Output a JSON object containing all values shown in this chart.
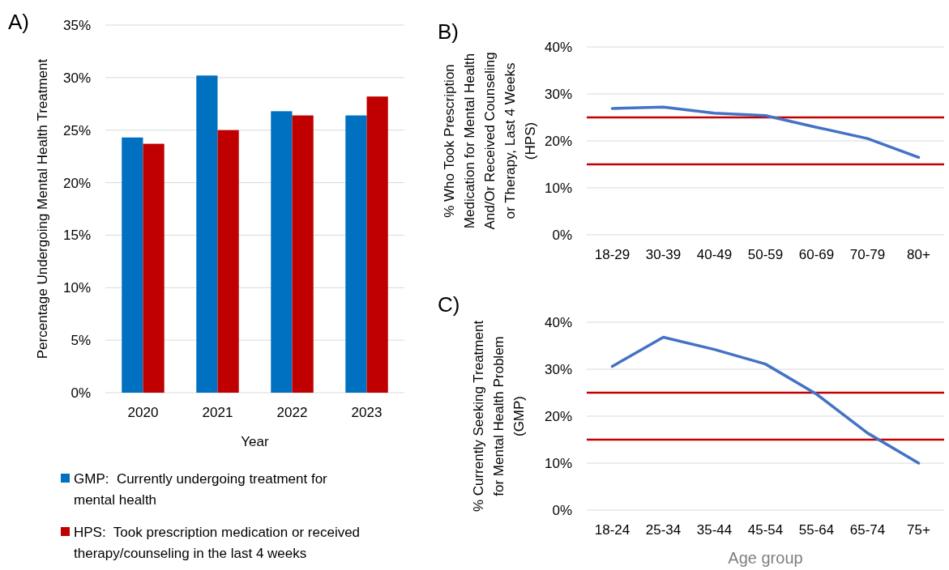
{
  "chart_data": [
    {
      "type": "bar",
      "title": "A)",
      "xlabel": "Year",
      "ylabel": "Percentage Undergoing Mental Health Treatment",
      "categories": [
        "2020",
        "2021",
        "2022",
        "2023"
      ],
      "series": [
        {
          "name": "GMP:  Currently undergoing treatment for mental health",
          "color": "#0070c0",
          "values": [
            24.3,
            30.2,
            26.8,
            26.4
          ]
        },
        {
          "name": "HPS:  Took prescription medication or received therapy/counseling in the last 4 weeks",
          "color": "#c00000",
          "values": [
            23.7,
            25.0,
            26.4,
            28.2
          ]
        }
      ],
      "ylim": [
        0,
        35
      ],
      "yticks": [
        {
          "value": 0,
          "label": "0%"
        },
        {
          "value": 5,
          "label": "5%"
        },
        {
          "value": 10,
          "label": "10%"
        },
        {
          "value": 15,
          "label": "15%"
        },
        {
          "value": 20,
          "label": "20%"
        },
        {
          "value": 25,
          "label": "25%"
        },
        {
          "value": 30,
          "label": "30%"
        },
        {
          "value": 35,
          "label": "35%"
        }
      ],
      "grid": "y",
      "legend": "bottom"
    },
    {
      "type": "line",
      "title": "B)",
      "ylabel": "% Who Took Prescription Medication for Mental Health And/Or Received Counseling or Therapy, Last 4 Weeks (HPS)",
      "categories": [
        "18-29",
        "30-39",
        "40-49",
        "50-59",
        "60-69",
        "70-79",
        "80+"
      ],
      "series": [
        {
          "color": "#4472c4",
          "values": [
            26.9,
            27.2,
            25.9,
            25.4,
            22.9,
            20.5,
            16.5
          ]
        }
      ],
      "ylim": [
        0,
        40
      ],
      "yticks": [
        {
          "value": 0,
          "label": "0%"
        },
        {
          "value": 10,
          "label": "10%"
        },
        {
          "value": 20,
          "label": "20%"
        },
        {
          "value": 30,
          "label": "30%"
        },
        {
          "value": 40,
          "label": "40%"
        }
      ],
      "grid": "y",
      "ref_lines": [
        {
          "axis": "y",
          "value": 25,
          "color": "#c00000"
        },
        {
          "axis": "y",
          "value": 15,
          "color": "#c00000"
        }
      ]
    },
    {
      "type": "line",
      "title": "C)",
      "xlabel": "Age group",
      "ylabel": "% Currently Seeking Treatment for Mental Health Problem (GMP)",
      "categories": [
        "18-24",
        "25-34",
        "35-44",
        "45-54",
        "55-64",
        "65-74",
        "75+"
      ],
      "series": [
        {
          "color": "#4472c4",
          "values": [
            30.6,
            36.8,
            34.2,
            31.1,
            24.7,
            16.4,
            10.0
          ]
        }
      ],
      "ylim": [
        0,
        40
      ],
      "yticks": [
        {
          "value": 0,
          "label": "0%"
        },
        {
          "value": 10,
          "label": "10%"
        },
        {
          "value": 20,
          "label": "20%"
        },
        {
          "value": 30,
          "label": "30%"
        },
        {
          "value": 40,
          "label": "40%"
        }
      ],
      "grid": "y",
      "ref_lines": [
        {
          "axis": "y",
          "value": 25,
          "color": "#c00000"
        },
        {
          "axis": "y",
          "value": 15,
          "color": "#c00000"
        }
      ]
    }
  ]
}
